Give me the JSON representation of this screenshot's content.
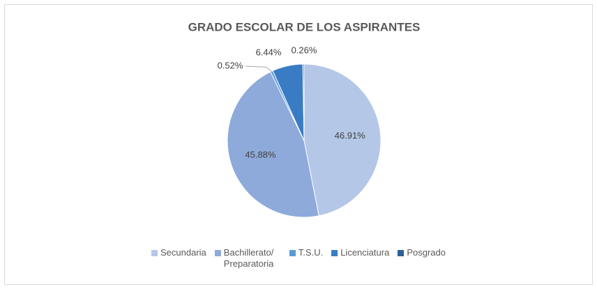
{
  "chart_data": {
    "type": "pie",
    "title": "GRADO ESCOLAR DE LOS ASPIRANTES",
    "categories": [
      "Secundaria",
      "Bachillerato/ Preparatoria",
      "T.S.U.",
      "Licenciatura",
      "Posgrado"
    ],
    "values": [
      46.91,
      45.88,
      0.52,
      6.44,
      0.26
    ],
    "value_labels": [
      "46.91%",
      "45.88%",
      "0.52%",
      "6.44%",
      "0.26%"
    ],
    "colors": [
      "#b4c7e7",
      "#8eaadb",
      "#5b9bd5",
      "#3a7cc4",
      "#2a6199"
    ],
    "legend": "bottom"
  }
}
